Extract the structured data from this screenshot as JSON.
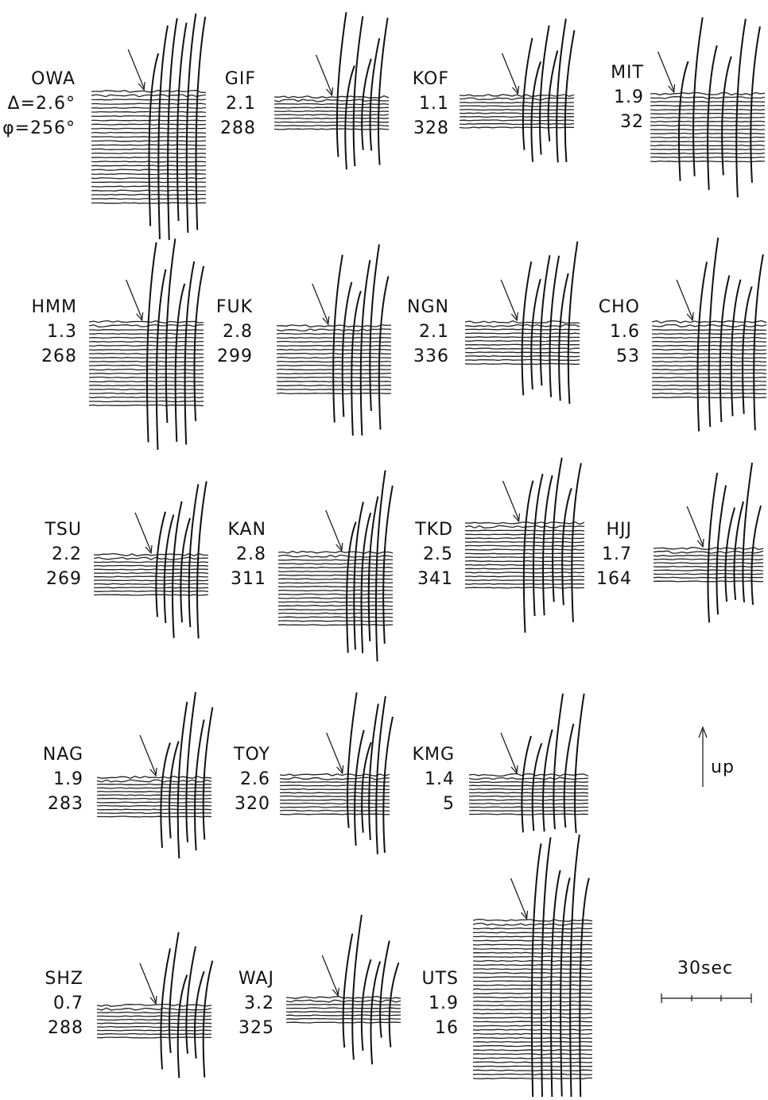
{
  "stations": [
    {
      "name": "OWA",
      "distance": "Δ=2.6°",
      "azimuth": "φ=256°"
    },
    {
      "name": "GIF",
      "distance": "2.1",
      "azimuth": "288"
    },
    {
      "name": "KOF",
      "distance": "1.1",
      "azimuth": "328"
    },
    {
      "name": "MIT",
      "distance": "1.9",
      "azimuth": "32"
    },
    {
      "name": "HMM",
      "distance": "1.3",
      "azimuth": "268"
    },
    {
      "name": "FUK",
      "distance": "2.8",
      "azimuth": "299"
    },
    {
      "name": "NGN",
      "distance": "2.1",
      "azimuth": "336"
    },
    {
      "name": "CHO",
      "distance": "1.6",
      "azimuth": "53"
    },
    {
      "name": "TSU",
      "distance": "2.2",
      "azimuth": "269"
    },
    {
      "name": "KAN",
      "distance": "2.8",
      "azimuth": "311"
    },
    {
      "name": "TKD",
      "distance": "2.5",
      "azimuth": "341"
    },
    {
      "name": "HJJ",
      "distance": "1.7",
      "azimuth": "164"
    },
    {
      "name": "NAG",
      "distance": "1.9",
      "azimuth": "283"
    },
    {
      "name": "TOY",
      "distance": "2.6",
      "azimuth": "320"
    },
    {
      "name": "KMG",
      "distance": "1.4",
      "azimuth": "5"
    },
    {
      "name": "SHZ",
      "distance": "0.7",
      "azimuth": "288"
    },
    {
      "name": "WAJ",
      "distance": "3.2",
      "azimuth": "325"
    },
    {
      "name": "UTS",
      "distance": "1.9",
      "azimuth": "16"
    }
  ],
  "orientation": "up",
  "scale": "30sec"
}
